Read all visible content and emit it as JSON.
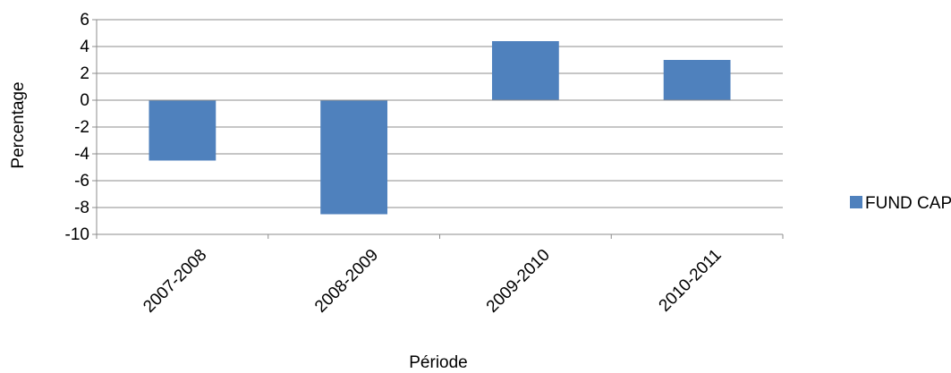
{
  "chart_data": {
    "type": "bar",
    "title": "",
    "xlabel": "Période",
    "ylabel": "Percentage",
    "categories": [
      "2007-2008",
      "2008-2009",
      "2009-2010",
      "2010-2011"
    ],
    "series": [
      {
        "name": "FUND CAP",
        "values": [
          -4.5,
          -8.5,
          4.4,
          3.0
        ]
      }
    ],
    "ylim": [
      -10,
      6
    ],
    "yticks": [
      "6",
      "4",
      "2",
      "0",
      "-2",
      "-4",
      "-6",
      "-8",
      "-10"
    ],
    "grid": true,
    "legend_position": "right",
    "colors": {
      "bar": "#4F81BD",
      "grid": "#8C8C8C",
      "axis": "#8C8C8C"
    }
  }
}
